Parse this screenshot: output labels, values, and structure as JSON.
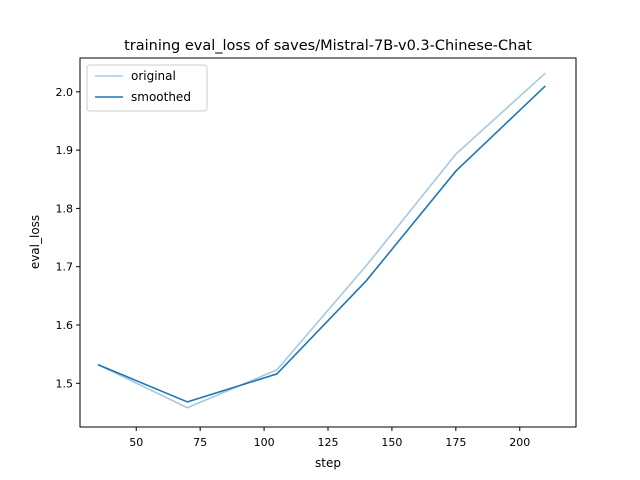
{
  "chart_data": {
    "type": "line",
    "title": "training eval_loss of saves/Mistral-7B-v0.3-Chinese-Chat",
    "xlabel": "step",
    "ylabel": "eval_loss",
    "xlim": [
      28,
      222
    ],
    "ylim": [
      1.425,
      2.058
    ],
    "x_ticks": [
      50,
      75,
      100,
      125,
      150,
      175,
      200
    ],
    "y_ticks": [
      1.5,
      1.6,
      1.7,
      1.8,
      1.9,
      2.0
    ],
    "y_tick_labels": [
      "1.5",
      "1.6",
      "1.7",
      "1.8",
      "1.9",
      "2.0"
    ],
    "grid": false,
    "legend": "top-left",
    "x": [
      35,
      70,
      105,
      140,
      175,
      210
    ],
    "series": [
      {
        "name": "original",
        "color": "#a6c8e3",
        "values": [
          1.532,
          1.458,
          1.523,
          1.702,
          1.893,
          2.032
        ]
      },
      {
        "name": "smoothed",
        "color": "#1f77b4",
        "values": [
          1.532,
          1.468,
          1.516,
          1.676,
          1.864,
          2.01
        ]
      }
    ]
  }
}
